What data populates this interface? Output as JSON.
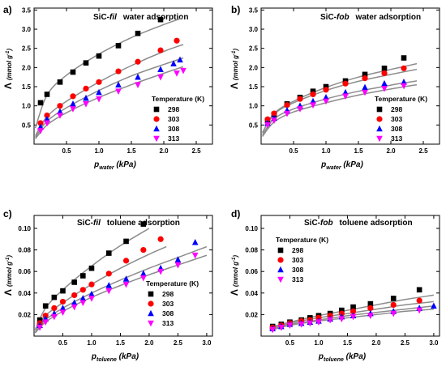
{
  "figure": {
    "colors": {
      "298": "#000000",
      "303": "#ff0000",
      "308": "#0000ff",
      "313": "#ff00ff",
      "fit": "#8c8c8c"
    },
    "markers": {
      "298": "square",
      "303": "circle",
      "308": "triangle-up",
      "313": "triangle-down"
    }
  },
  "chart_data": [
    {
      "type": "scatter",
      "panel_label": "a)",
      "title_material": "SiC-",
      "title_material_italic": "fil",
      "title_rest": "water adsorption",
      "xlabel_main": "p",
      "xlabel_sub": "water",
      "xlabel_unit": " (kPa)",
      "ylabel_lambda": "Λ",
      "ylabel_unit": "(mmol g",
      "ylabel_exp": "-1",
      "ylabel_close": ")",
      "xlim": [
        0,
        2.75
      ],
      "ylim": [
        0,
        3.55
      ],
      "xticks": [
        "0.5",
        "1.0",
        "1.5",
        "2.0",
        "2.5"
      ],
      "xtick_values": [
        0.5,
        1.0,
        1.5,
        2.0,
        2.5
      ],
      "yticks": [
        "0.5",
        "1.0",
        "1.5",
        "2.0",
        "2.5",
        "3.0",
        "3.5"
      ],
      "ytick_values": [
        0.5,
        1.0,
        1.5,
        2.0,
        2.5,
        3.0,
        3.5
      ],
      "legend": {
        "title": "Temperature (K)",
        "position": "right",
        "entries": [
          "298",
          "303",
          "308",
          "313"
        ]
      },
      "fit_curve_xrange": [
        0.02,
        2.3
      ],
      "series": [
        {
          "name": "298",
          "x": [
            0.1,
            0.2,
            0.4,
            0.6,
            0.8,
            1.0,
            1.3,
            1.6,
            1.95
          ],
          "y": [
            1.08,
            1.3,
            1.62,
            1.88,
            2.12,
            2.3,
            2.57,
            2.89,
            3.25
          ],
          "fit_x": [
            0.02,
            0.2,
            0.5,
            1.0,
            1.5,
            2.0,
            2.3
          ],
          "fit_y": [
            0.42,
            1.28,
            1.8,
            2.35,
            2.78,
            3.12,
            3.3
          ]
        },
        {
          "name": "303",
          "x": [
            0.1,
            0.2,
            0.4,
            0.6,
            0.8,
            1.0,
            1.3,
            1.6,
            1.95,
            2.2
          ],
          "y": [
            0.55,
            0.75,
            1.0,
            1.25,
            1.45,
            1.62,
            1.9,
            2.15,
            2.45,
            2.7
          ],
          "fit_x": [
            0.02,
            0.2,
            0.5,
            1.0,
            1.5,
            2.0,
            2.3
          ],
          "fit_y": [
            0.22,
            0.72,
            1.12,
            1.62,
            2.05,
            2.42,
            2.6
          ]
        },
        {
          "name": "308",
          "x": [
            0.1,
            0.2,
            0.4,
            0.6,
            0.8,
            1.0,
            1.3,
            1.6,
            1.95,
            2.15,
            2.25
          ],
          "y": [
            0.45,
            0.65,
            0.85,
            1.05,
            1.2,
            1.35,
            1.55,
            1.75,
            1.95,
            2.1,
            2.2
          ],
          "fit_x": [
            0.02,
            0.2,
            0.5,
            1.0,
            1.5,
            2.0,
            2.3
          ],
          "fit_y": [
            0.18,
            0.6,
            0.95,
            1.4,
            1.78,
            2.08,
            2.25
          ]
        },
        {
          "name": "313",
          "x": [
            0.1,
            0.2,
            0.4,
            0.6,
            0.8,
            1.0,
            1.3,
            1.6,
            1.95,
            2.2,
            2.3
          ],
          "y": [
            0.35,
            0.55,
            0.75,
            0.92,
            1.05,
            1.18,
            1.38,
            1.55,
            1.75,
            1.85,
            1.92
          ],
          "fit_x": [
            0.02,
            0.2,
            0.5,
            1.0,
            1.5,
            2.0,
            2.3
          ],
          "fit_y": [
            0.14,
            0.5,
            0.82,
            1.22,
            1.55,
            1.85,
            2.02
          ]
        }
      ]
    },
    {
      "type": "scatter",
      "panel_label": "b)",
      "title_material": "SiC-",
      "title_material_italic": "fob",
      "title_rest": "water adsorption",
      "xlabel_main": "p",
      "xlabel_sub": "water",
      "xlabel_unit": " (kPa)",
      "ylabel_lambda": "Λ",
      "ylabel_unit": "(mmol g",
      "ylabel_exp": "-1",
      "ylabel_close": ")",
      "xlim": [
        0,
        2.75
      ],
      "ylim": [
        0,
        3.55
      ],
      "xticks": [
        "0.5",
        "1.0",
        "1.5",
        "2.0",
        "2.5"
      ],
      "xtick_values": [
        0.5,
        1.0,
        1.5,
        2.0,
        2.5
      ],
      "yticks": [
        "0.5",
        "1.0",
        "1.5",
        "2.0",
        "2.5",
        "3.0",
        "3.5"
      ],
      "ytick_values": [
        0.5,
        1.0,
        1.5,
        2.0,
        2.5,
        3.0,
        3.5
      ],
      "legend": {
        "title": "Temperature (K)",
        "position": "right",
        "entries": [
          "298",
          "303",
          "308",
          "313"
        ]
      },
      "series": [
        {
          "name": "298",
          "x": [
            0.1,
            0.2,
            0.4,
            0.6,
            0.8,
            1.0,
            1.3,
            1.6,
            1.9,
            2.2
          ],
          "y": [
            0.62,
            0.78,
            1.05,
            1.22,
            1.38,
            1.5,
            1.65,
            1.82,
            1.98,
            2.25
          ],
          "fit_x": [
            0.02,
            0.2,
            0.5,
            1.0,
            1.5,
            2.0,
            2.4
          ],
          "fit_y": [
            0.3,
            0.8,
            1.12,
            1.48,
            1.75,
            1.95,
            2.1
          ]
        },
        {
          "name": "303",
          "x": [
            0.1,
            0.2,
            0.4,
            0.6,
            0.8,
            1.0,
            1.3,
            1.6,
            1.9,
            2.2
          ],
          "y": [
            0.65,
            0.8,
            1.02,
            1.18,
            1.3,
            1.42,
            1.58,
            1.72,
            1.85,
            1.98
          ],
          "fit_x": [
            0.02,
            0.2,
            0.5,
            1.0,
            1.5,
            2.0,
            2.4
          ],
          "fit_y": [
            0.3,
            0.78,
            1.08,
            1.4,
            1.64,
            1.82,
            1.95
          ]
        },
        {
          "name": "308",
          "x": [
            0.1,
            0.2,
            0.4,
            0.6,
            0.8,
            1.0,
            1.3,
            1.6,
            1.9,
            2.2
          ],
          "y": [
            0.55,
            0.68,
            0.88,
            1.0,
            1.12,
            1.22,
            1.35,
            1.48,
            1.58,
            1.62
          ],
          "fit_x": [
            0.02,
            0.2,
            0.5,
            1.0,
            1.5,
            2.0,
            2.4
          ],
          "fit_y": [
            0.24,
            0.66,
            0.92,
            1.18,
            1.38,
            1.54,
            1.65
          ]
        },
        {
          "name": "313",
          "x": [
            0.1,
            0.2,
            0.4,
            0.6,
            0.8,
            1.0,
            1.3,
            1.6,
            1.9,
            2.2
          ],
          "y": [
            0.5,
            0.62,
            0.8,
            0.92,
            1.02,
            1.12,
            1.25,
            1.35,
            1.45,
            1.52
          ],
          "fit_x": [
            0.02,
            0.2,
            0.5,
            1.0,
            1.5,
            2.0,
            2.4
          ],
          "fit_y": [
            0.2,
            0.58,
            0.84,
            1.08,
            1.28,
            1.44,
            1.55
          ]
        }
      ]
    },
    {
      "type": "scatter",
      "panel_label": "c)",
      "title_material": "SiC-",
      "title_material_italic": "fil",
      "title_rest": "toluene adsorption",
      "xlabel_main": "p",
      "xlabel_sub": "toluene",
      "xlabel_unit": " (kPa)",
      "ylabel_lambda": "Λ",
      "ylabel_unit": "(mmol g",
      "ylabel_exp": "-1",
      "ylabel_close": ")",
      "xlim": [
        0,
        3.1
      ],
      "ylim": [
        0,
        0.112
      ],
      "xticks": [
        "0.5",
        "1.0",
        "1.5",
        "2.0",
        "2.5",
        "3.0"
      ],
      "xtick_values": [
        0.5,
        1.0,
        1.5,
        2.0,
        2.5,
        3.0
      ],
      "yticks": [
        "0.02",
        "0.04",
        "0.06",
        "0.08",
        "0.10"
      ],
      "ytick_values": [
        0.02,
        0.04,
        0.06,
        0.08,
        0.1
      ],
      "legend": {
        "title": "Temperature (K)",
        "position": "right",
        "entries": [
          "298",
          "303",
          "308",
          "313"
        ]
      },
      "series": [
        {
          "name": "298",
          "x": [
            0.1,
            0.2,
            0.35,
            0.5,
            0.7,
            0.85,
            1.0,
            1.3,
            1.6,
            1.9
          ],
          "y": [
            0.015,
            0.028,
            0.036,
            0.042,
            0.05,
            0.056,
            0.063,
            0.077,
            0.088,
            0.104
          ],
          "fit_x": [
            0.02,
            0.2,
            0.5,
            1.0,
            1.5,
            2.0
          ],
          "fit_y": [
            0.006,
            0.026,
            0.043,
            0.065,
            0.084,
            0.1
          ]
        },
        {
          "name": "303",
          "x": [
            0.1,
            0.2,
            0.35,
            0.5,
            0.7,
            0.85,
            1.0,
            1.3,
            1.6,
            1.9,
            2.2
          ],
          "y": [
            0.012,
            0.019,
            0.026,
            0.032,
            0.038,
            0.043,
            0.048,
            0.058,
            0.07,
            0.08,
            0.09
          ],
          "fit_x": [
            0.02,
            0.2,
            0.5,
            1.0,
            1.5,
            2.0,
            2.3
          ],
          "fit_y": [
            0.004,
            0.019,
            0.031,
            0.048,
            0.063,
            0.076,
            0.083
          ]
        },
        {
          "name": "308",
          "x": [
            0.1,
            0.2,
            0.35,
            0.5,
            0.7,
            0.85,
            1.0,
            1.3,
            1.6,
            1.9,
            2.2,
            2.5,
            2.8
          ],
          "y": [
            0.01,
            0.016,
            0.021,
            0.026,
            0.031,
            0.035,
            0.039,
            0.047,
            0.053,
            0.058,
            0.063,
            0.071,
            0.087
          ],
          "fit_x": [
            0.02,
            0.2,
            0.5,
            1.0,
            1.5,
            2.0,
            2.5,
            3.0
          ],
          "fit_y": [
            0.003,
            0.015,
            0.026,
            0.04,
            0.052,
            0.063,
            0.073,
            0.083
          ]
        },
        {
          "name": "313",
          "x": [
            0.1,
            0.2,
            0.35,
            0.5,
            0.7,
            0.85,
            1.0,
            1.3,
            1.6,
            1.9,
            2.2,
            2.5,
            2.8
          ],
          "y": [
            0.008,
            0.013,
            0.018,
            0.022,
            0.027,
            0.031,
            0.035,
            0.042,
            0.048,
            0.054,
            0.06,
            0.066,
            0.075
          ],
          "fit_x": [
            0.02,
            0.2,
            0.5,
            1.0,
            1.5,
            2.0,
            2.5,
            3.0
          ],
          "fit_y": [
            0.003,
            0.013,
            0.023,
            0.036,
            0.047,
            0.057,
            0.066,
            0.075
          ]
        }
      ]
    },
    {
      "type": "scatter",
      "panel_label": "d)",
      "title_material": "SiC-",
      "title_material_italic": "fob",
      "title_rest": "toluene adsorption",
      "xlabel_main": "p",
      "xlabel_sub": "toluene",
      "xlabel_unit": " (kPa)",
      "ylabel_lambda": "Λ",
      "ylabel_unit": "(mmol g",
      "ylabel_exp": "-1",
      "ylabel_close": ")",
      "xlim": [
        0,
        3.1
      ],
      "ylim": [
        0,
        0.112
      ],
      "xticks": [
        "0.5",
        "1.0",
        "1.5",
        "2.0",
        "2.5",
        "3.0"
      ],
      "xtick_values": [
        0.5,
        1.0,
        1.5,
        2.0,
        2.5,
        3.0
      ],
      "yticks": [
        "0.02",
        "0.04",
        "0.06",
        "0.08",
        "0.10"
      ],
      "ytick_values": [
        0.02,
        0.04,
        0.06,
        0.08,
        0.1
      ],
      "legend": {
        "title": "Temperature (K)",
        "position": "top-left",
        "entries": [
          "298",
          "303",
          "308",
          "313"
        ]
      },
      "series": [
        {
          "name": "298",
          "x": [
            0.2,
            0.35,
            0.5,
            0.7,
            0.85,
            1.0,
            1.2,
            1.4,
            1.6,
            1.9,
            2.3,
            2.75
          ],
          "y": [
            0.009,
            0.011,
            0.013,
            0.015,
            0.017,
            0.019,
            0.021,
            0.024,
            0.027,
            0.03,
            0.035,
            0.043
          ],
          "fit_x": [
            0.15,
            0.5,
            1.0,
            1.5,
            2.0,
            2.5,
            3.0
          ],
          "fit_y": [
            0.008,
            0.013,
            0.019,
            0.024,
            0.029,
            0.034,
            0.038
          ]
        },
        {
          "name": "303",
          "x": [
            0.2,
            0.35,
            0.5,
            0.7,
            0.85,
            1.0,
            1.2,
            1.4,
            1.6,
            1.9,
            2.3,
            2.75
          ],
          "y": [
            0.008,
            0.01,
            0.012,
            0.014,
            0.015,
            0.017,
            0.019,
            0.021,
            0.023,
            0.026,
            0.029,
            0.033
          ],
          "fit_x": [
            0.15,
            0.5,
            1.0,
            1.5,
            2.0,
            2.5,
            3.0
          ],
          "fit_y": [
            0.007,
            0.012,
            0.017,
            0.021,
            0.025,
            0.029,
            0.032
          ]
        },
        {
          "name": "308",
          "x": [
            0.2,
            0.35,
            0.5,
            0.7,
            0.85,
            1.0,
            1.2,
            1.4,
            1.6,
            1.9,
            2.3,
            2.75,
            3.0
          ],
          "y": [
            0.007,
            0.009,
            0.011,
            0.012,
            0.013,
            0.014,
            0.016,
            0.018,
            0.019,
            0.021,
            0.023,
            0.026,
            0.028
          ],
          "fit_x": [
            0.15,
            0.5,
            1.0,
            1.5,
            2.0,
            2.5,
            3.0
          ],
          "fit_y": [
            0.006,
            0.011,
            0.015,
            0.019,
            0.022,
            0.025,
            0.028
          ]
        },
        {
          "name": "313",
          "x": [
            0.2,
            0.35,
            0.5,
            0.7,
            0.85,
            1.0,
            1.2,
            1.4,
            1.6,
            1.9,
            2.3,
            2.75
          ],
          "y": [
            0.006,
            0.008,
            0.01,
            0.011,
            0.012,
            0.013,
            0.015,
            0.016,
            0.018,
            0.019,
            0.021,
            0.024
          ],
          "fit_x": [
            0.15,
            0.5,
            1.0,
            1.5,
            2.0,
            2.5,
            3.0
          ],
          "fit_y": [
            0.005,
            0.01,
            0.014,
            0.017,
            0.02,
            0.023,
            0.025
          ]
        }
      ]
    }
  ]
}
